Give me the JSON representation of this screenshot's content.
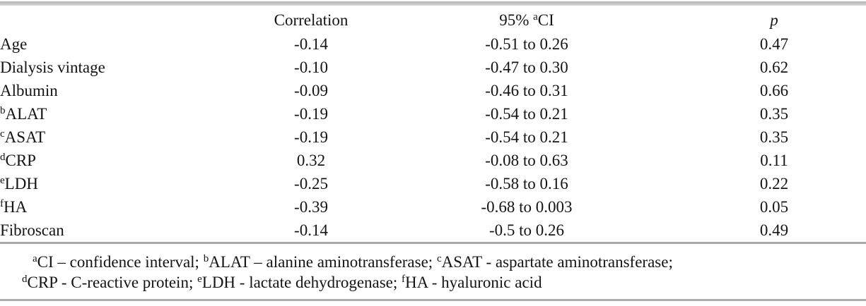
{
  "table": {
    "header": {
      "blank": "",
      "correlation": "Correlation",
      "ci_prefix": "95% ",
      "ci_sup": "a",
      "ci_label": "CI",
      "p": "p"
    },
    "rows": [
      {
        "sup": "",
        "label": "Age",
        "correlation": "-0.14",
        "ci": "-0.51 to 0.26",
        "p": "0.47"
      },
      {
        "sup": "",
        "label": "Dialysis vintage",
        "correlation": "-0.10",
        "ci": "-0.47 to 0.30",
        "p": "0.62"
      },
      {
        "sup": "",
        "label": "Albumin",
        "correlation": "-0.09",
        "ci": "-0.46 to 0.31",
        "p": "0.66"
      },
      {
        "sup": "b",
        "label": "ALAT",
        "correlation": "-0.19",
        "ci": "-0.54 to 0.21",
        "p": "0.35"
      },
      {
        "sup": "c",
        "label": "ASAT",
        "correlation": "-0.19",
        "ci": "-0.54 to 0.21",
        "p": "0.35"
      },
      {
        "sup": "d",
        "label": "CRP",
        "correlation": "0.32",
        "ci": "-0.08 to 0.63",
        "p": "0.11"
      },
      {
        "sup": "e",
        "label": "LDH",
        "correlation": "-0.25",
        "ci": "-0.58 to 0.16",
        "p": "0.22"
      },
      {
        "sup": "f",
        "label": "HA",
        "correlation": "-0.39",
        "ci": "-0.68 to 0.003",
        "p": "0.05"
      },
      {
        "sup": "",
        "label": "Fibroscan",
        "correlation": "-0.14",
        "ci": "-0.5 to 0.26",
        "p": "0.49"
      }
    ],
    "footnote": {
      "line1": [
        {
          "sup": "a",
          "text": "CI – confidence interval; "
        },
        {
          "sup": "b",
          "text": "ALAT – alanine aminotransferase; "
        },
        {
          "sup": "c",
          "text": "ASAT - aspartate aminotransferase;"
        }
      ],
      "line2": [
        {
          "sup": "d",
          "text": "CRP - C-reactive protein; "
        },
        {
          "sup": "e",
          "text": "LDH - lactate dehydrogenase; "
        },
        {
          "sup": "f",
          "text": "HA - hyaluronic acid"
        }
      ]
    },
    "colors": {
      "text": "#141414",
      "rule_gray": "#a8a8a8"
    }
  }
}
